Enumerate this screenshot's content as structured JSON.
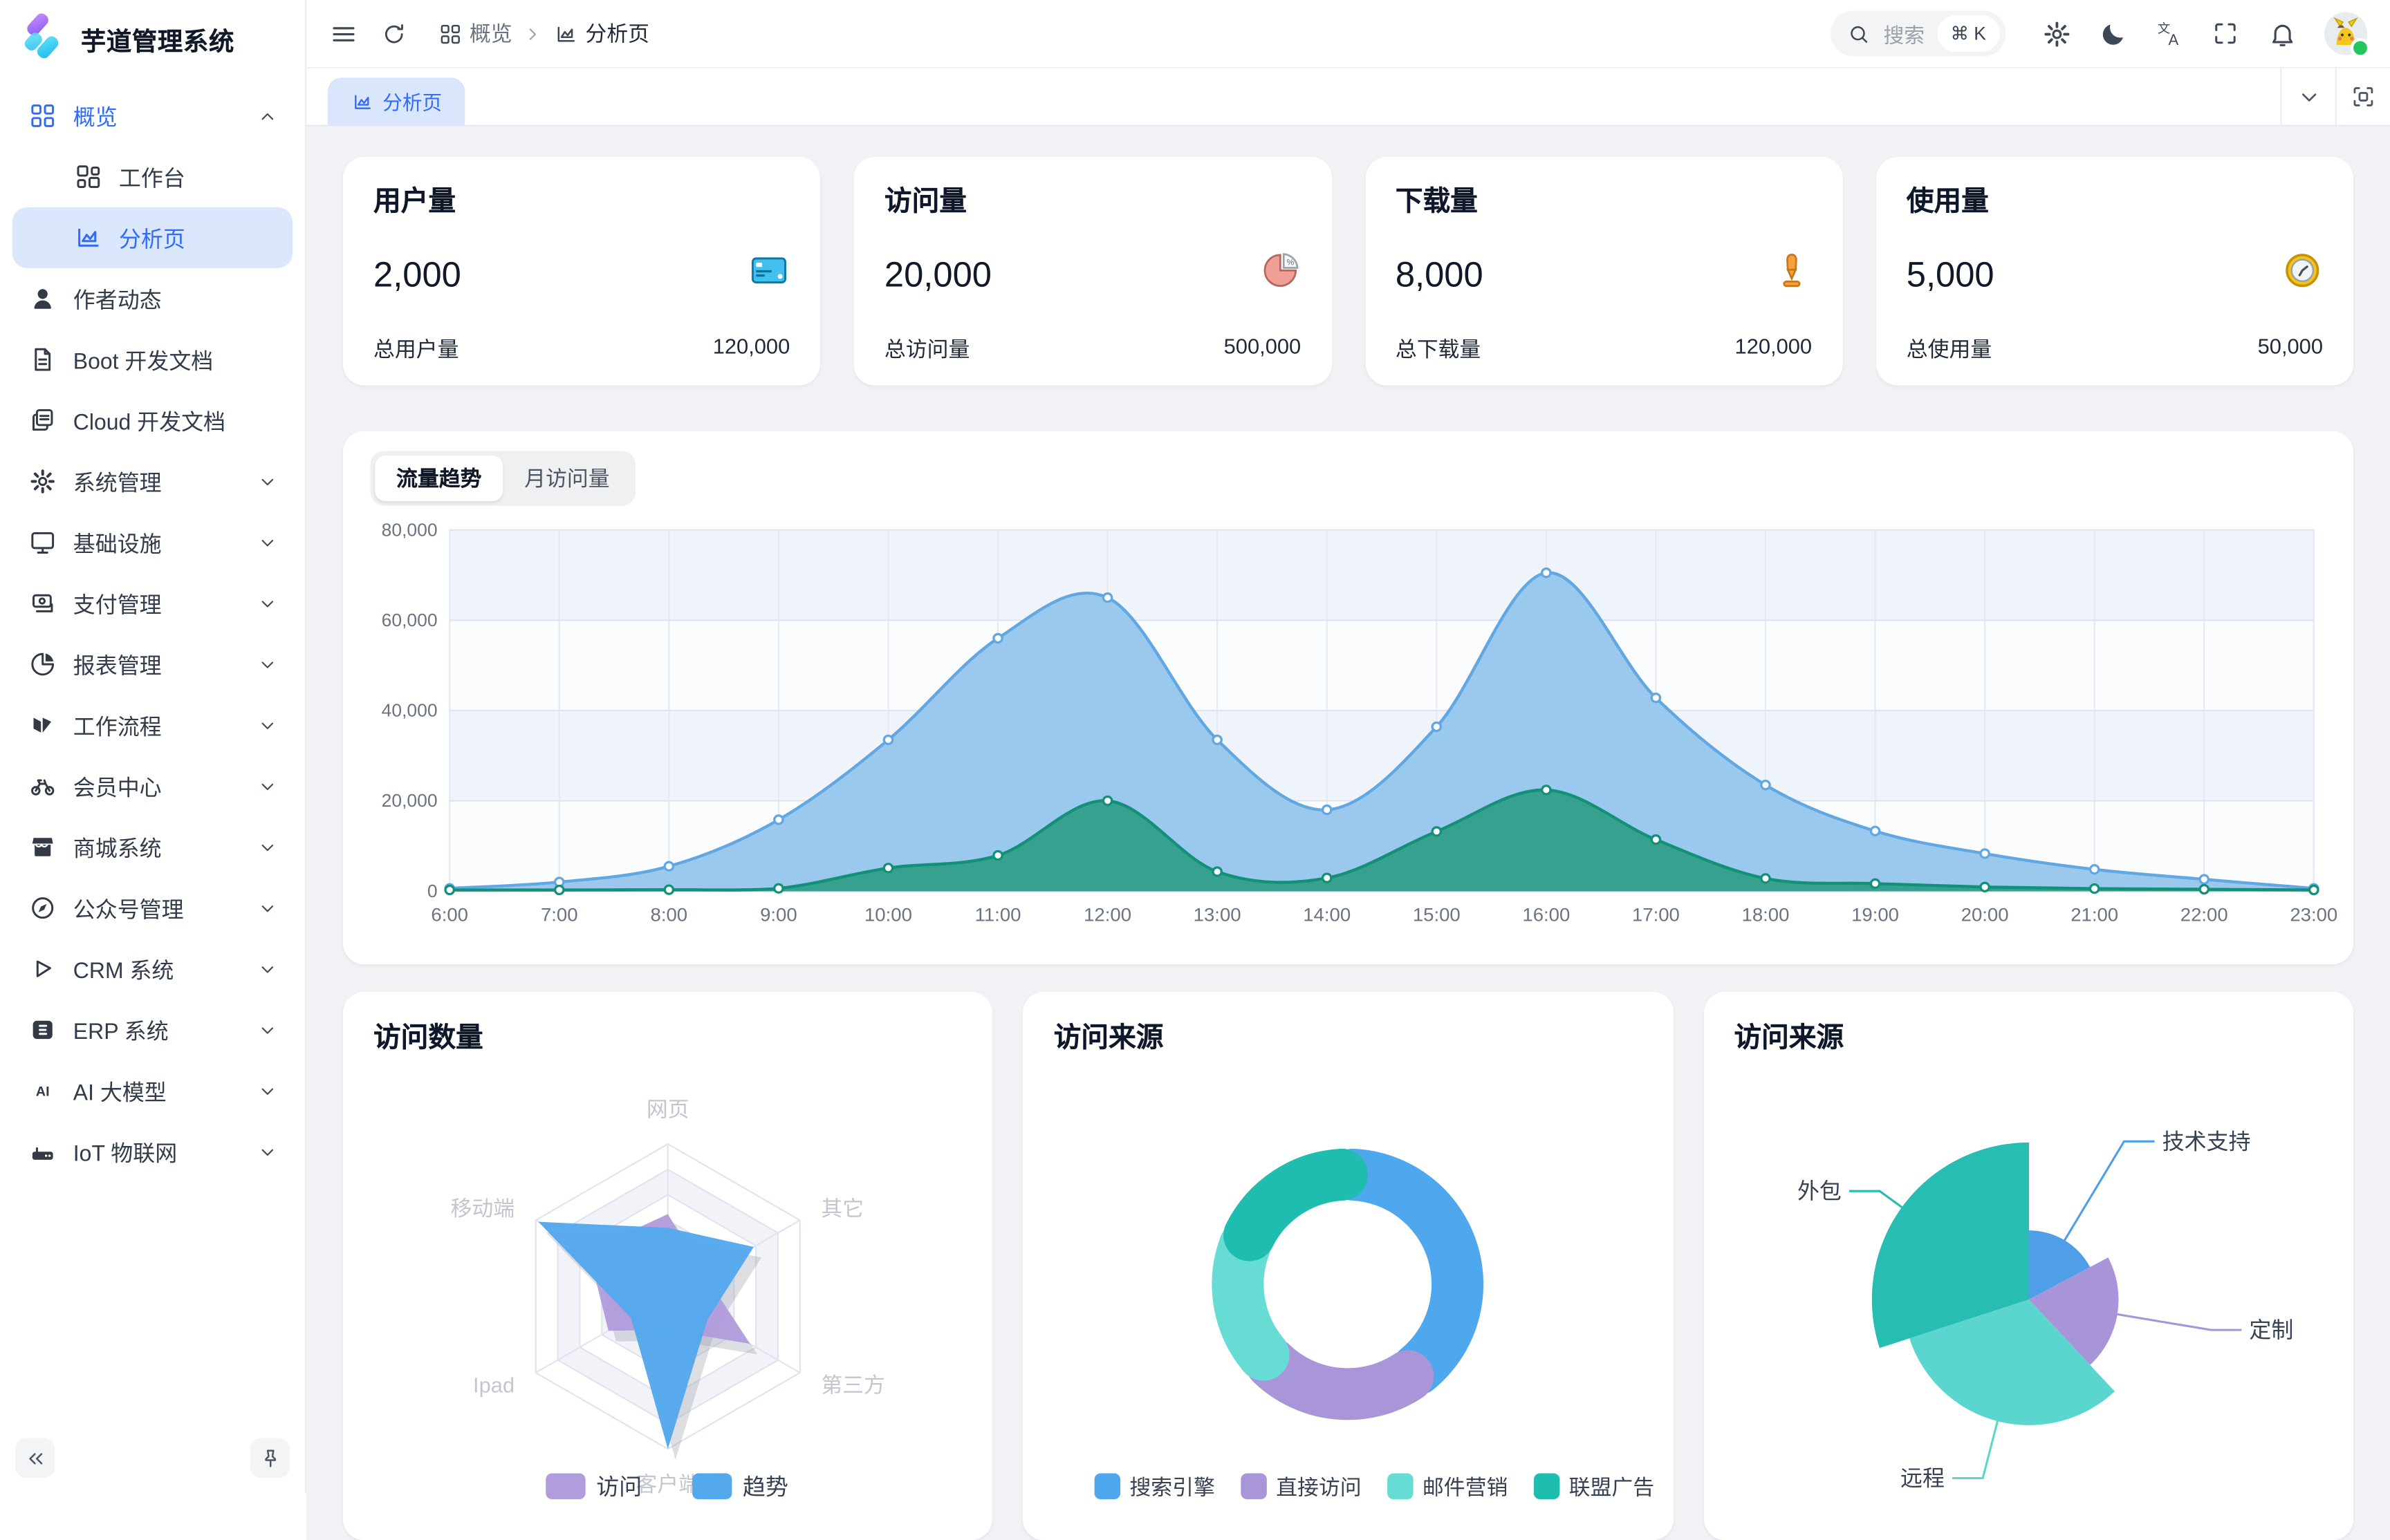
{
  "app": {
    "title": "芋道管理系统"
  },
  "sidebar": {
    "items": [
      {
        "key": "overview",
        "label": "概览",
        "icon": "grid",
        "blue": true,
        "chevron": "up"
      },
      {
        "key": "workbench",
        "label": "工作台",
        "icon": "workbench",
        "child": true
      },
      {
        "key": "analysis",
        "label": "分析页",
        "icon": "analysis",
        "child": true,
        "active": true
      },
      {
        "key": "author-news",
        "label": "作者动态",
        "icon": "user"
      },
      {
        "key": "boot-docs",
        "label": "Boot 开发文档",
        "icon": "doc"
      },
      {
        "key": "cloud-docs",
        "label": "Cloud 开发文档",
        "icon": "docs"
      },
      {
        "key": "system",
        "label": "系统管理",
        "icon": "gear",
        "chevron": "down"
      },
      {
        "key": "infrastructure",
        "label": "基础设施",
        "icon": "monitor",
        "chevron": "down"
      },
      {
        "key": "payment",
        "label": "支付管理",
        "icon": "wallet",
        "chevron": "down"
      },
      {
        "key": "report",
        "label": "报表管理",
        "icon": "pie",
        "chevron": "down"
      },
      {
        "key": "workflow",
        "label": "工作流程",
        "icon": "flow",
        "chevron": "down"
      },
      {
        "key": "member",
        "label": "会员中心",
        "icon": "member",
        "chevron": "down"
      },
      {
        "key": "mall",
        "label": "商城系统",
        "icon": "mall",
        "chevron": "down"
      },
      {
        "key": "mp",
        "label": "公众号管理",
        "icon": "compass",
        "chevron": "down"
      },
      {
        "key": "crm",
        "label": "CRM 系统",
        "icon": "crm",
        "chevron": "down"
      },
      {
        "key": "erp",
        "label": "ERP 系统",
        "icon": "erp",
        "chevron": "down"
      },
      {
        "key": "ai",
        "label": "AI 大模型",
        "icon": "ai",
        "chevron": "down"
      },
      {
        "key": "iot",
        "label": "IoT 物联网",
        "icon": "iot",
        "chevron": "down"
      }
    ]
  },
  "header": {
    "breadcrumb": [
      {
        "icon": "grid",
        "label": "概览"
      },
      {
        "icon": "analysis",
        "label": "分析页"
      }
    ],
    "search": {
      "placeholder": "搜索",
      "shortcut": "⌘ K"
    }
  },
  "tabbar": {
    "active_tab": "分析页"
  },
  "stats": [
    {
      "title": "用户量",
      "value": "2,000",
      "icon": "credit-card",
      "footer_label": "总用户量",
      "footer_value": "120,000"
    },
    {
      "title": "访问量",
      "value": "20,000",
      "icon": "pie-percent",
      "footer_label": "总访问量",
      "footer_value": "500,000"
    },
    {
      "title": "下载量",
      "value": "8,000",
      "icon": "download-arrow",
      "footer_label": "总下载量",
      "footer_value": "120,000"
    },
    {
      "title": "使用量",
      "value": "5,000",
      "icon": "clock",
      "footer_label": "总使用量",
      "footer_value": "50,000"
    }
  ],
  "chart_tabs": {
    "active": "流量趋势",
    "inactive": "月访问量"
  },
  "chart_data": {
    "traffic": {
      "type": "area",
      "title": "流量趋势",
      "x": [
        "6:00",
        "7:00",
        "8:00",
        "9:00",
        "10:00",
        "11:00",
        "12:00",
        "13:00",
        "14:00",
        "15:00",
        "16:00",
        "17:00",
        "18:00",
        "19:00",
        "20:00",
        "21:00",
        "22:00",
        "23:00"
      ],
      "ylim": [
        0,
        80000
      ],
      "yticks": [
        0,
        20000,
        40000,
        60000,
        80000
      ],
      "grid": true,
      "series": [
        {
          "name": "blue",
          "line": "#61a8e2",
          "fill": "#92c4ed",
          "values": [
            600,
            2000,
            5500,
            15800,
            33500,
            56000,
            65000,
            33500,
            18000,
            36400,
            70500,
            42800,
            23500,
            13300,
            8300,
            4800,
            2600,
            600
          ]
        },
        {
          "name": "green",
          "line": "#129178",
          "fill": "#2f9d88",
          "values": [
            250,
            250,
            300,
            600,
            5100,
            7900,
            20000,
            4300,
            2900,
            13200,
            22400,
            11400,
            2800,
            1650,
            900,
            550,
            400,
            250
          ]
        }
      ]
    },
    "radar": {
      "type": "radar",
      "title": "访问数量",
      "axes": [
        "网页",
        "其它",
        "第三方",
        "客户端",
        "Ipad",
        "移动端"
      ],
      "max": 100,
      "series": [
        {
          "name": "访问",
          "color": "#b29ddc",
          "values": [
            54,
            28,
            62,
            22,
            45,
            60
          ]
        },
        {
          "name": "趋势",
          "color": "#54a8ec",
          "values": [
            45,
            65,
            30,
            100,
            28,
            98
          ]
        }
      ],
      "legend_position": "bottom"
    },
    "donut": {
      "type": "pie",
      "variant": "donut",
      "title": "访问来源",
      "slices": [
        {
          "label": "搜索引擎",
          "color": "#4fa7ee",
          "value": 41
        },
        {
          "label": "直接访问",
          "color": "#a996d8",
          "value": 23
        },
        {
          "label": "邮件营销",
          "color": "#66dcd5",
          "value": 18
        },
        {
          "label": "联盟广告",
          "color": "#1fbdb0",
          "value": 18
        }
      ],
      "legend_position": "bottom"
    },
    "rose": {
      "type": "pie",
      "variant": "rose",
      "title": "访问来源",
      "slices": [
        {
          "label": "技术支持",
          "color": "#4f9fe8",
          "value": 62,
          "radius": 0.44
        },
        {
          "label": "定制",
          "color": "#a894d8",
          "value": 75,
          "radius": 0.57
        },
        {
          "label": "远程",
          "color": "#5bd6cf",
          "value": 115,
          "radius": 0.8
        },
        {
          "label": "外包",
          "color": "#27bdb2",
          "value": 108,
          "radius": 1.0
        }
      ]
    }
  }
}
